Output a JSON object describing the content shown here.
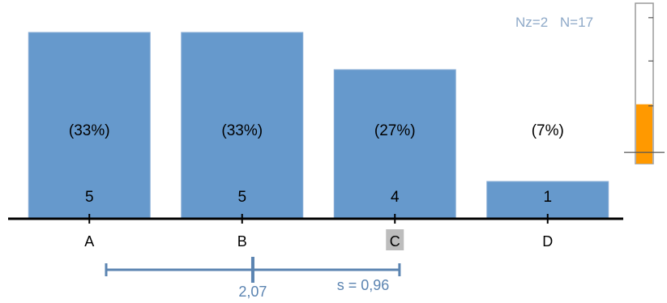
{
  "colors": {
    "bar": "#6699cc",
    "bar_edge": "#8aaed6",
    "axis": "#000000",
    "stat_text": "#8ea9c8",
    "range_line": "#5b84b1",
    "highlight_bg": "#bdbdbd",
    "gauge_fill": "#ff9900",
    "gauge_border": "#9a9a9a"
  },
  "header": {
    "nz": "Nz=2",
    "n": "N=17"
  },
  "gauge": {
    "fill_fraction": 0.37,
    "marker_fraction": 0.93
  },
  "chart_data": {
    "type": "bar",
    "categories": [
      "A",
      "B",
      "C",
      "D"
    ],
    "values": [
      5,
      5,
      4,
      1
    ],
    "value_labels": [
      "5",
      "5",
      "4",
      "1"
    ],
    "percent_labels": [
      "(33%)",
      "(33%)",
      "(27%)",
      "(7%)"
    ],
    "highlighted_category": "C",
    "ylim": [
      0,
      5
    ],
    "title": "",
    "xlabel": "",
    "ylabel": "",
    "grid": false,
    "legend": "none",
    "summary": {
      "mean": 2.07,
      "mean_label": "2,07",
      "sd": 0.96,
      "sd_label": "s = 0,96"
    }
  }
}
